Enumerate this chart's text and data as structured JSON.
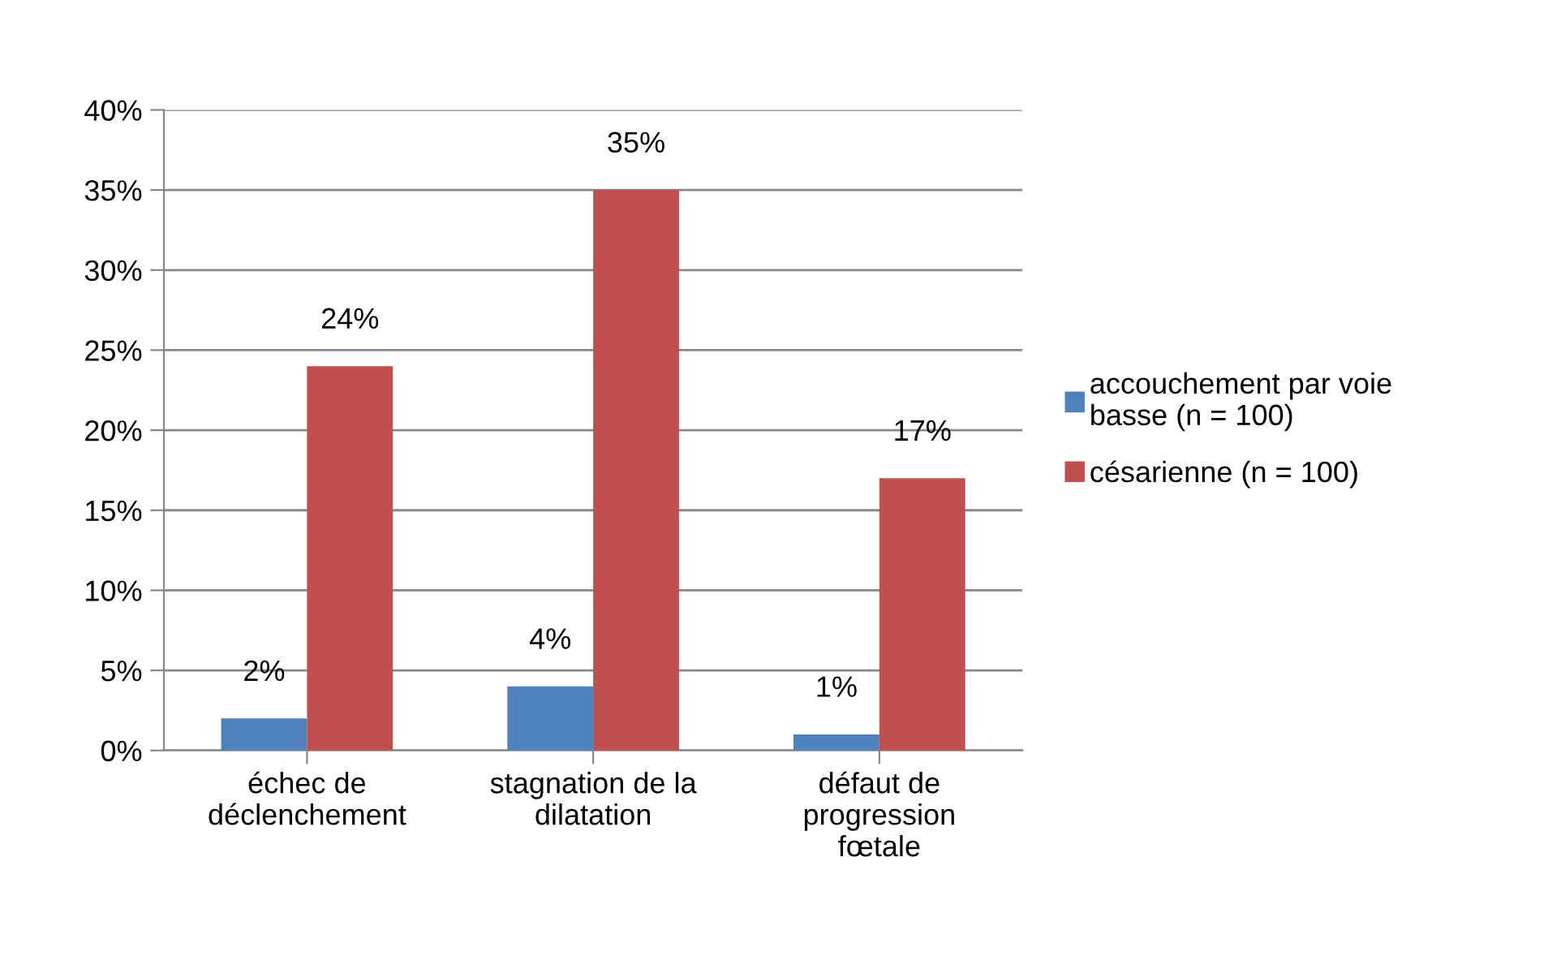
{
  "chart_data": {
    "type": "bar",
    "categories": [
      "échec de\ndéclenchement",
      "stagnation de la\ndilatation",
      "défaut de\nprogression\nfœtale"
    ],
    "series": [
      {
        "name": "accouchement par voie\nbasse (n = 100)",
        "color": "#4f81bd",
        "values": [
          2,
          4,
          1
        ],
        "value_labels": [
          "2%",
          "4%",
          "1%"
        ]
      },
      {
        "name": "césarienne (n = 100)",
        "color": "#c0504d",
        "values": [
          24,
          35,
          17
        ],
        "value_labels": [
          "24%",
          "35%",
          "17%"
        ]
      }
    ],
    "ylim": [
      0,
      40
    ],
    "yticks": [
      {
        "value": 0,
        "label": "0%"
      },
      {
        "value": 5,
        "label": "5%"
      },
      {
        "value": 10,
        "label": "10%"
      },
      {
        "value": 15,
        "label": "15%"
      },
      {
        "value": 20,
        "label": "20%"
      },
      {
        "value": 25,
        "label": "25%"
      },
      {
        "value": 30,
        "label": "30%"
      },
      {
        "value": 35,
        "label": "35%"
      },
      {
        "value": 40,
        "label": "40%"
      }
    ],
    "grid": "y",
    "legend": "right"
  }
}
